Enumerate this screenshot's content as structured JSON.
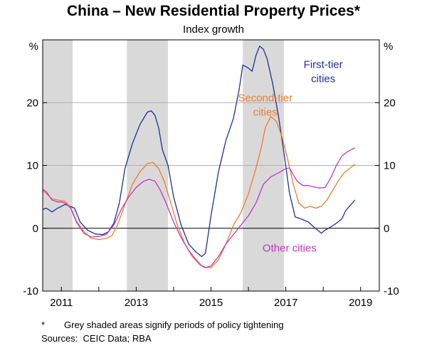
{
  "chart_data": {
    "type": "line",
    "title": "China – New Residential Property Prices*",
    "subtitle": "Index growth",
    "ylabel_left": "%",
    "ylabel_right": "%",
    "ylim": [
      -10,
      30
    ],
    "yticks": [
      -10,
      0,
      10,
      20
    ],
    "xlim": [
      2010.5,
      2019.5
    ],
    "xticks": [
      2011,
      2013,
      2015,
      2017,
      2019
    ],
    "shaded_periods": [
      [
        2010.5,
        2011.3
      ],
      [
        2012.75,
        2013.85
      ],
      [
        2015.85,
        2016.95
      ]
    ],
    "series": [
      {
        "name": "First-tier cities",
        "label_lines": [
          "First-tier",
          "cities"
        ],
        "color": "#1f2f9b",
        "x": [
          2010.5,
          2010.6,
          2010.75,
          2010.9,
          2011.0,
          2011.1,
          2011.2,
          2011.35,
          2011.5,
          2011.7,
          2011.9,
          2012.1,
          2012.25,
          2012.4,
          2012.55,
          2012.7,
          2012.9,
          2013.1,
          2013.3,
          2013.4,
          2013.5,
          2013.6,
          2013.7,
          2013.85,
          2014.0,
          2014.2,
          2014.4,
          2014.6,
          2014.75,
          2014.85,
          2015.0,
          2015.2,
          2015.4,
          2015.6,
          2015.75,
          2015.85,
          2016.0,
          2016.1,
          2016.2,
          2016.3,
          2016.4,
          2016.5,
          2016.65,
          2016.8,
          2016.95,
          2017.1,
          2017.25,
          2017.4,
          2017.6,
          2017.75,
          2017.85,
          2017.95,
          2018.05,
          2018.2,
          2018.35,
          2018.5,
          2018.6,
          2018.7,
          2018.85
        ],
        "values": [
          3.0,
          3.2,
          2.6,
          3.2,
          3.5,
          3.8,
          3.6,
          3.2,
          1.0,
          -0.3,
          -0.9,
          -1.0,
          -0.6,
          0.8,
          4.0,
          9.5,
          13.5,
          16.5,
          18.5,
          18.7,
          18.0,
          16.0,
          12.5,
          10.0,
          5.0,
          0.5,
          -2.5,
          -3.8,
          -4.5,
          -4.0,
          2.0,
          9.0,
          14.0,
          17.5,
          22.0,
          26.0,
          25.5,
          25.0,
          27.5,
          29.0,
          28.5,
          27.0,
          23.0,
          18.0,
          12.0,
          5.5,
          1.8,
          1.5,
          1.0,
          0.2,
          -0.3,
          -0.8,
          -0.3,
          0.2,
          0.8,
          1.5,
          2.8,
          3.5,
          4.5
        ]
      },
      {
        "name": "Second-tier cities",
        "label_lines": [
          "Second-tier",
          "cities"
        ],
        "color": "#f47a23",
        "x": [
          2010.5,
          2010.6,
          2010.75,
          2010.9,
          2011.0,
          2011.1,
          2011.25,
          2011.4,
          2011.6,
          2011.8,
          2012.0,
          2012.2,
          2012.35,
          2012.5,
          2012.7,
          2012.9,
          2013.1,
          2013.3,
          2013.45,
          2013.6,
          2013.75,
          2013.9,
          2014.1,
          2014.3,
          2014.5,
          2014.7,
          2014.85,
          2015.0,
          2015.2,
          2015.4,
          2015.6,
          2015.8,
          2016.0,
          2016.2,
          2016.35,
          2016.45,
          2016.6,
          2016.75,
          2016.9,
          2017.05,
          2017.2,
          2017.35,
          2017.5,
          2017.65,
          2017.8,
          2017.95,
          2018.1,
          2018.25,
          2018.4,
          2018.55,
          2018.7,
          2018.85
        ],
        "values": [
          6.0,
          5.5,
          4.7,
          4.5,
          4.4,
          4.3,
          3.3,
          1.2,
          -0.5,
          -1.6,
          -1.8,
          -1.6,
          -1.2,
          0.5,
          3.8,
          7.0,
          9.0,
          10.3,
          10.5,
          9.5,
          7.5,
          4.5,
          0.5,
          -2.5,
          -4.5,
          -5.8,
          -6.2,
          -6.3,
          -5.0,
          -2.5,
          0.5,
          2.5,
          5.5,
          9.5,
          13.0,
          16.0,
          17.8,
          17.0,
          14.5,
          11.0,
          7.0,
          4.0,
          3.2,
          3.5,
          3.2,
          3.5,
          4.5,
          6.0,
          7.5,
          8.8,
          9.5,
          10.2
        ]
      },
      {
        "name": "Other cities",
        "label_lines": [
          "Other cities"
        ],
        "color": "#c235c2",
        "x": [
          2010.5,
          2010.6,
          2010.75,
          2010.9,
          2011.0,
          2011.1,
          2011.25,
          2011.4,
          2011.6,
          2011.8,
          2012.0,
          2012.2,
          2012.4,
          2012.6,
          2012.8,
          2013.0,
          2013.2,
          2013.35,
          2013.5,
          2013.65,
          2013.8,
          2014.0,
          2014.2,
          2014.4,
          2014.6,
          2014.75,
          2014.85,
          2015.0,
          2015.2,
          2015.4,
          2015.6,
          2015.8,
          2016.0,
          2016.2,
          2016.4,
          2016.6,
          2016.8,
          2017.0,
          2017.1,
          2017.2,
          2017.3,
          2017.45,
          2017.6,
          2017.75,
          2017.9,
          2018.05,
          2018.2,
          2018.35,
          2018.5,
          2018.65,
          2018.85
        ],
        "values": [
          6.2,
          5.8,
          4.5,
          4.2,
          4.2,
          4.0,
          3.2,
          1.0,
          -0.8,
          -1.4,
          -1.3,
          -1.0,
          0.5,
          3.0,
          5.0,
          6.5,
          7.5,
          7.8,
          7.5,
          6.0,
          4.0,
          1.0,
          -1.5,
          -3.5,
          -5.0,
          -6.0,
          -6.3,
          -6.0,
          -4.5,
          -2.5,
          -1.0,
          0.5,
          2.0,
          4.0,
          7.0,
          8.2,
          8.8,
          9.5,
          9.6,
          8.5,
          7.5,
          6.8,
          6.8,
          6.6,
          6.4,
          6.5,
          8.0,
          10.0,
          11.5,
          12.2,
          12.8
        ]
      }
    ],
    "footnotes": {
      "asterisk": "*",
      "note": "Grey shaded areas signify periods of policy tightening",
      "sources": "Sources:  CEIC Data; RBA"
    }
  }
}
